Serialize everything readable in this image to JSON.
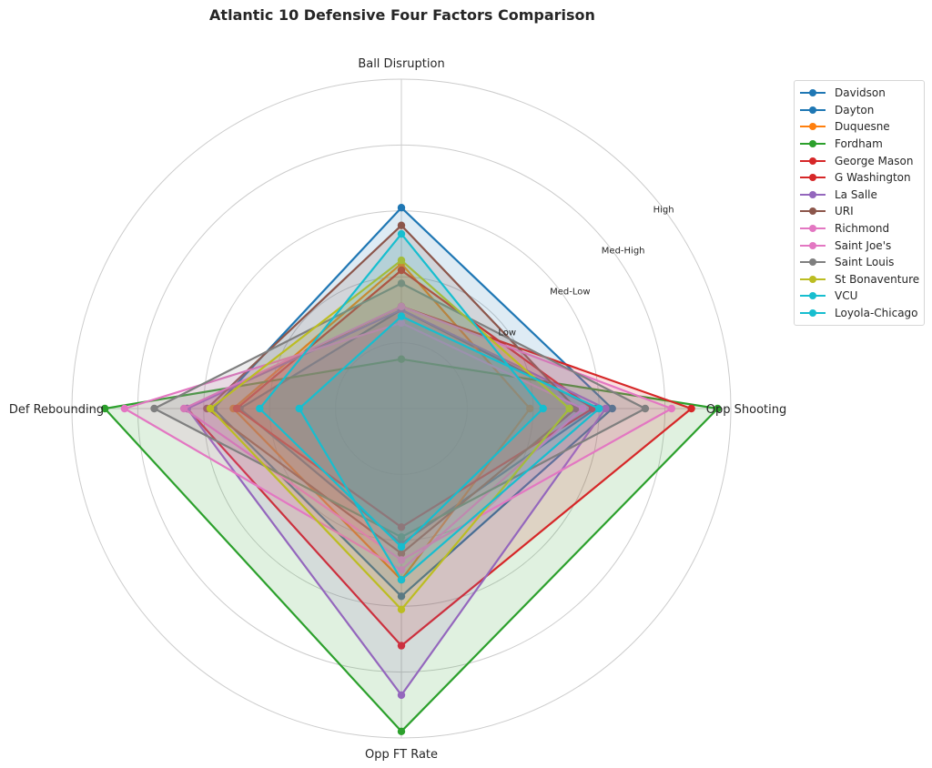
{
  "chart_data": {
    "type": "radar",
    "title": "Atlantic 10 Defensive Four Factors Comparison",
    "axes": [
      "Ball Disruption",
      "Opp Shooting",
      "Opp FT Rate",
      "Def Rebounding"
    ],
    "scale_labels": [
      "Low",
      "Med-Low",
      "Med-High",
      "High"
    ],
    "scale_range": [
      0,
      5
    ],
    "grid": true,
    "legend_position": "right",
    "series": [
      {
        "name": "Davidson",
        "color": "#1f77b4",
        "values": [
          3.05,
          3.2,
          2.85,
          2.85
        ]
      },
      {
        "name": "Dayton",
        "color": "#1f77b4",
        "values": [
          1.5,
          2.95,
          2.05,
          2.45
        ]
      },
      {
        "name": "Duquesne",
        "color": "#ff7f0e",
        "values": [
          2.2,
          1.95,
          2.6,
          2.55
        ]
      },
      {
        "name": "Fordham",
        "color": "#2ca02c",
        "values": [
          0.75,
          4.8,
          4.9,
          4.5
        ]
      },
      {
        "name": "George Mason",
        "color": "#d62728",
        "values": [
          2.1,
          2.9,
          1.8,
          2.5
        ]
      },
      {
        "name": "G Washington",
        "color": "#d62728",
        "values": [
          1.55,
          4.4,
          3.6,
          3.25
        ]
      },
      {
        "name": "La Salle",
        "color": "#9467bd",
        "values": [
          1.5,
          3.1,
          4.35,
          3.25
        ]
      },
      {
        "name": "URI",
        "color": "#8c564b",
        "values": [
          2.78,
          2.65,
          2.2,
          2.95
        ]
      },
      {
        "name": "Richmond",
        "color": "#e377c2",
        "values": [
          1.55,
          4.1,
          2.3,
          3.3
        ]
      },
      {
        "name": "Saint Joe's",
        "color": "#e377c2",
        "values": [
          1.3,
          2.75,
          2.45,
          4.2
        ]
      },
      {
        "name": "Saint Louis",
        "color": "#7f7f7f",
        "values": [
          1.9,
          3.7,
          1.95,
          3.75
        ]
      },
      {
        "name": "St Bonaventure",
        "color": "#bcbd22",
        "values": [
          2.25,
          2.55,
          3.05,
          2.9
        ]
      },
      {
        "name": "VCU",
        "color": "#17becf",
        "values": [
          2.65,
          2.15,
          2.1,
          2.15
        ]
      },
      {
        "name": "Loyola-Chicago",
        "color": "#17becf",
        "values": [
          1.4,
          3.0,
          2.6,
          1.55
        ]
      }
    ]
  }
}
